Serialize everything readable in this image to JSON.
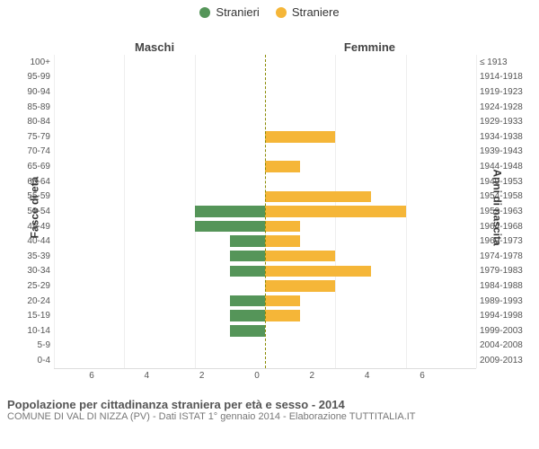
{
  "legend": {
    "m": {
      "label": "Stranieri",
      "color": "#559559"
    },
    "f": {
      "label": "Straniere",
      "color": "#f5b638"
    }
  },
  "headers": {
    "left": "Maschi",
    "right": "Femmine"
  },
  "axis_titles": {
    "left": "Fasce di età",
    "right": "Anni di nascita"
  },
  "x_max": 6,
  "x_ticks_left": [
    6,
    4,
    2,
    0
  ],
  "x_ticks_right": [
    0,
    2,
    4,
    6
  ],
  "grid_color": "#eeeeee",
  "rows": [
    {
      "age": "100+",
      "birth": "≤ 1913",
      "m": 0,
      "f": 0
    },
    {
      "age": "95-99",
      "birth": "1914-1918",
      "m": 0,
      "f": 0
    },
    {
      "age": "90-94",
      "birth": "1919-1923",
      "m": 0,
      "f": 0
    },
    {
      "age": "85-89",
      "birth": "1924-1928",
      "m": 0,
      "f": 0
    },
    {
      "age": "80-84",
      "birth": "1929-1933",
      "m": 0,
      "f": 0
    },
    {
      "age": "75-79",
      "birth": "1934-1938",
      "m": 0,
      "f": 2
    },
    {
      "age": "70-74",
      "birth": "1939-1943",
      "m": 0,
      "f": 0
    },
    {
      "age": "65-69",
      "birth": "1944-1948",
      "m": 0,
      "f": 1
    },
    {
      "age": "60-64",
      "birth": "1949-1953",
      "m": 0,
      "f": 0
    },
    {
      "age": "55-59",
      "birth": "1954-1958",
      "m": 0,
      "f": 3
    },
    {
      "age": "50-54",
      "birth": "1959-1963",
      "m": 2,
      "f": 4
    },
    {
      "age": "45-49",
      "birth": "1964-1968",
      "m": 2,
      "f": 1
    },
    {
      "age": "40-44",
      "birth": "1969-1973",
      "m": 1,
      "f": 1
    },
    {
      "age": "35-39",
      "birth": "1974-1978",
      "m": 1,
      "f": 2
    },
    {
      "age": "30-34",
      "birth": "1979-1983",
      "m": 1,
      "f": 3
    },
    {
      "age": "25-29",
      "birth": "1984-1988",
      "m": 0,
      "f": 2
    },
    {
      "age": "20-24",
      "birth": "1989-1993",
      "m": 1,
      "f": 1
    },
    {
      "age": "15-19",
      "birth": "1994-1998",
      "m": 1,
      "f": 1
    },
    {
      "age": "10-14",
      "birth": "1999-2003",
      "m": 1,
      "f": 0
    },
    {
      "age": "5-9",
      "birth": "2004-2008",
      "m": 0,
      "f": 0
    },
    {
      "age": "0-4",
      "birth": "2009-2013",
      "m": 0,
      "f": 0
    }
  ],
  "footer": {
    "title": "Popolazione per cittadinanza straniera per età e sesso - 2014",
    "sub": "COMUNE DI VAL DI NIZZA (PV) - Dati ISTAT 1° gennaio 2014 - Elaborazione TUTTITALIA.IT"
  }
}
